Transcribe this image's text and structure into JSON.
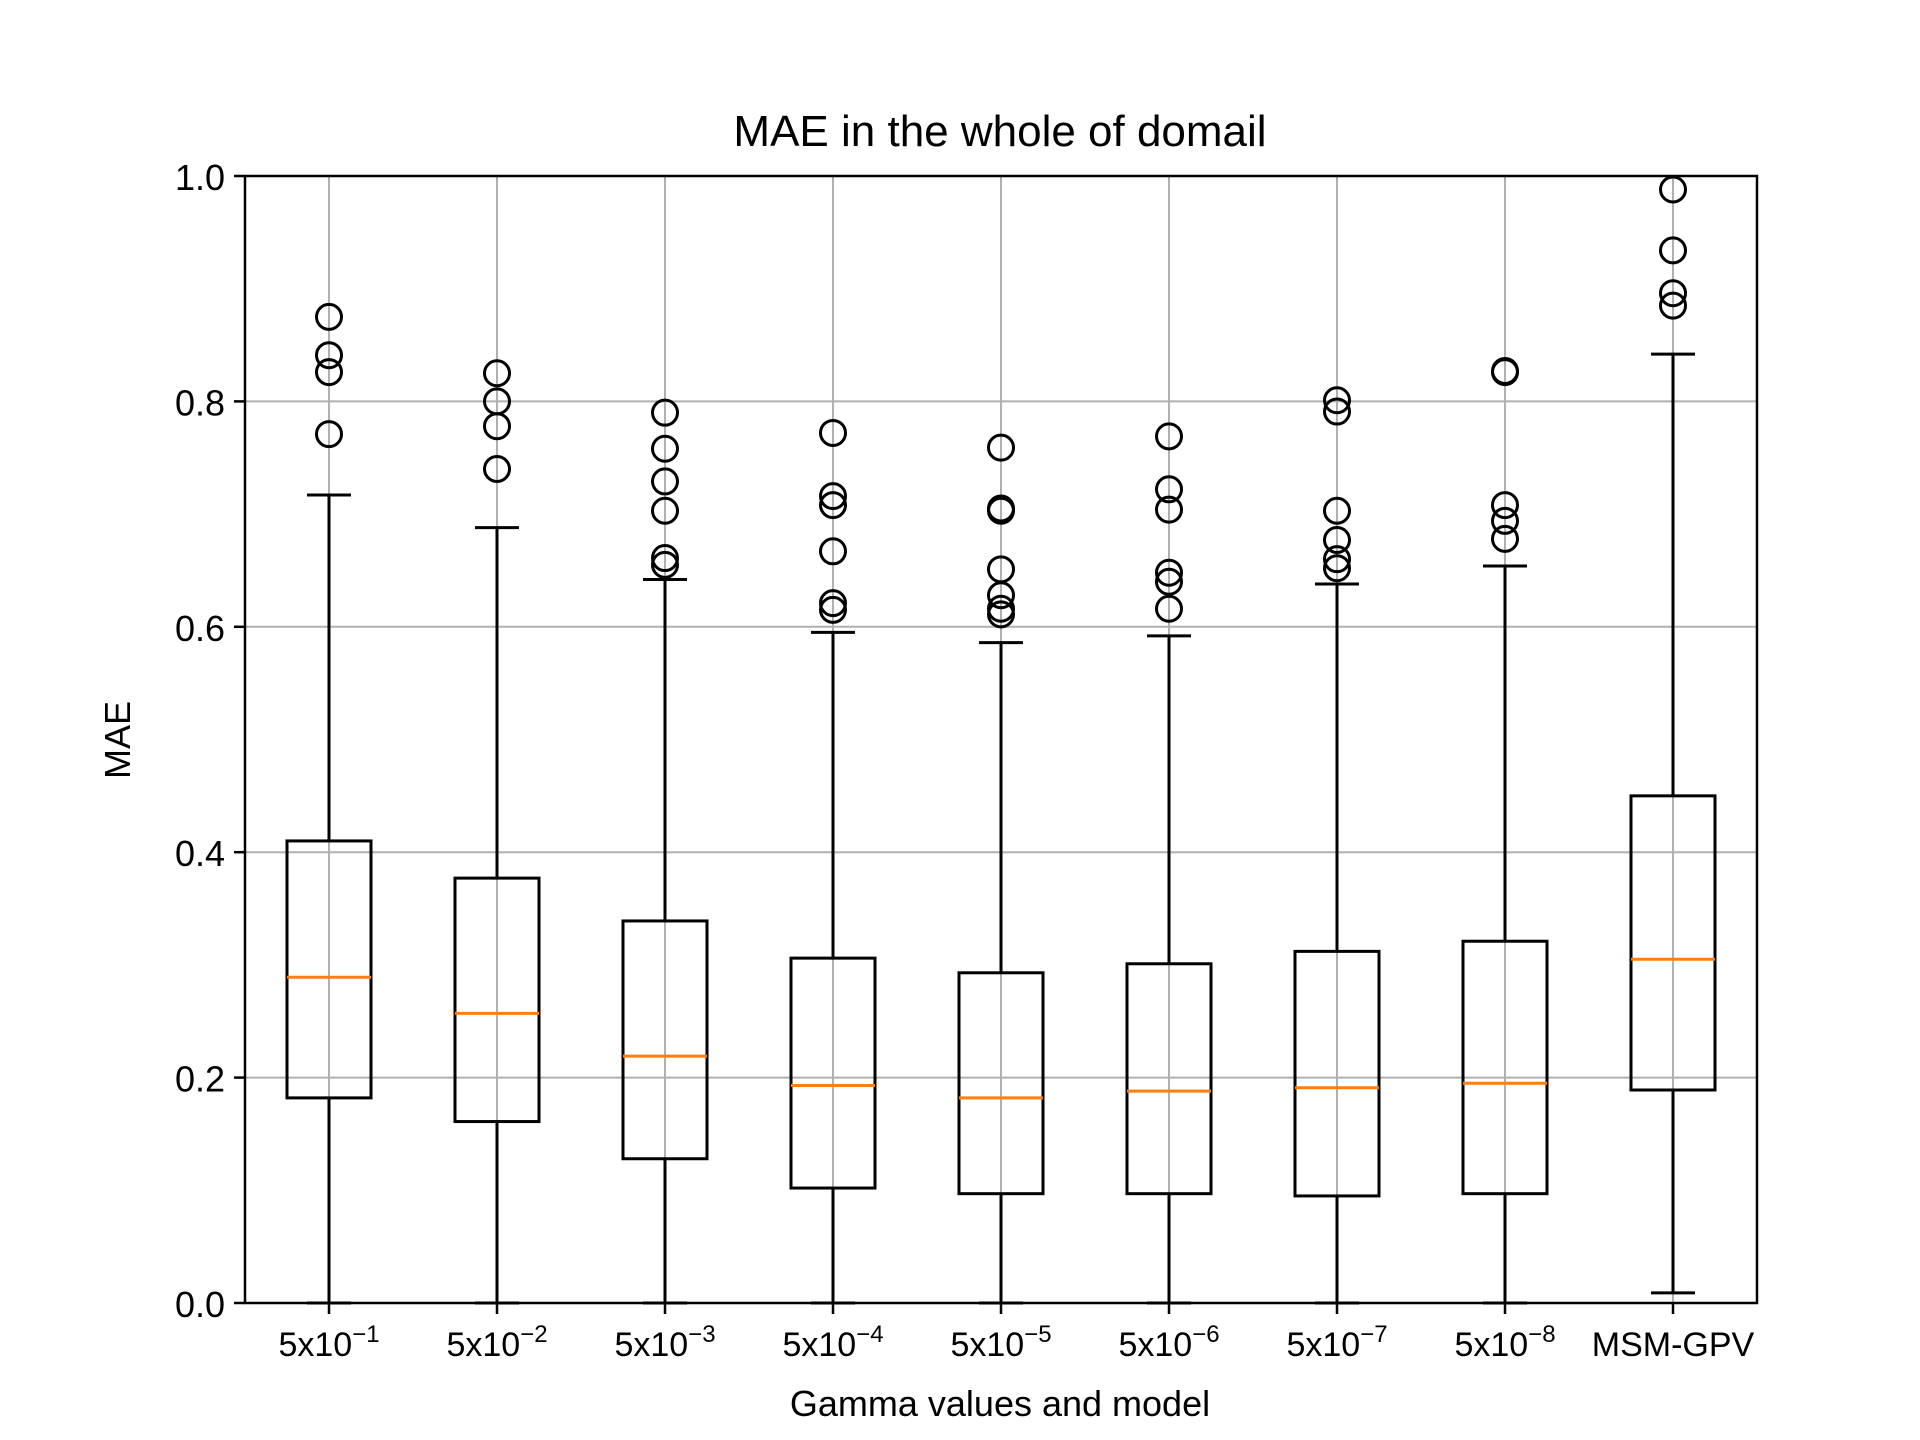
{
  "chart_data": {
    "type": "box",
    "title": "MAE in the whole of domail",
    "xlabel": "Gamma values and model",
    "ylabel": "MAE",
    "ylim": [
      0.0,
      1.0
    ],
    "yticks": [
      "0.0",
      "0.2",
      "0.4",
      "0.6",
      "0.8",
      "1.0"
    ],
    "ytick_values": [
      0.0,
      0.2,
      0.4,
      0.6,
      0.8,
      1.0
    ],
    "grid": true,
    "colors": {
      "box": "#000000",
      "median": "#ff7f0e",
      "grid": "#b0b0b0"
    },
    "categories": [
      {
        "base": "5x10",
        "exp": "−1"
      },
      {
        "base": "5x10",
        "exp": "−2"
      },
      {
        "base": "5x10",
        "exp": "−3"
      },
      {
        "base": "5x10",
        "exp": "−4"
      },
      {
        "base": "5x10",
        "exp": "−5"
      },
      {
        "base": "5x10",
        "exp": "−6"
      },
      {
        "base": "5x10",
        "exp": "−7"
      },
      {
        "base": "5x10",
        "exp": "−8"
      },
      {
        "base": "MSM-GPV",
        "exp": ""
      }
    ],
    "boxes": [
      {
        "whislo": 0.0,
        "q1": 0.182,
        "med": 0.289,
        "q3": 0.41,
        "whishi": 0.717,
        "fliers": [
          0.771,
          0.826,
          0.841,
          0.875
        ]
      },
      {
        "whislo": 0.0,
        "q1": 0.161,
        "med": 0.257,
        "q3": 0.377,
        "whishi": 0.688,
        "fliers": [
          0.74,
          0.778,
          0.8,
          0.825
        ]
      },
      {
        "whislo": 0.0,
        "q1": 0.128,
        "med": 0.219,
        "q3": 0.339,
        "whishi": 0.642,
        "fliers": [
          0.655,
          0.661,
          0.703,
          0.729,
          0.758,
          0.79
        ]
      },
      {
        "whislo": 0.0,
        "q1": 0.102,
        "med": 0.193,
        "q3": 0.306,
        "whishi": 0.595,
        "fliers": [
          0.615,
          0.621,
          0.667,
          0.708,
          0.716,
          0.772
        ]
      },
      {
        "whislo": 0.0,
        "q1": 0.097,
        "med": 0.182,
        "q3": 0.293,
        "whishi": 0.586,
        "fliers": [
          0.611,
          0.616,
          0.628,
          0.651,
          0.703,
          0.705,
          0.759
        ]
      },
      {
        "whislo": 0.0,
        "q1": 0.097,
        "med": 0.188,
        "q3": 0.301,
        "whishi": 0.592,
        "fliers": [
          0.616,
          0.64,
          0.648,
          0.704,
          0.722,
          0.769
        ]
      },
      {
        "whislo": 0.0,
        "q1": 0.095,
        "med": 0.191,
        "q3": 0.312,
        "whishi": 0.638,
        "fliers": [
          0.652,
          0.66,
          0.677,
          0.703,
          0.791,
          0.801
        ]
      },
      {
        "whislo": 0.0,
        "q1": 0.097,
        "med": 0.195,
        "q3": 0.321,
        "whishi": 0.654,
        "fliers": [
          0.678,
          0.694,
          0.708,
          0.826,
          0.827
        ]
      },
      {
        "whislo": 0.009,
        "q1": 0.189,
        "med": 0.305,
        "q3": 0.45,
        "whishi": 0.842,
        "fliers": [
          0.885,
          0.896,
          0.934,
          0.988
        ]
      }
    ]
  }
}
